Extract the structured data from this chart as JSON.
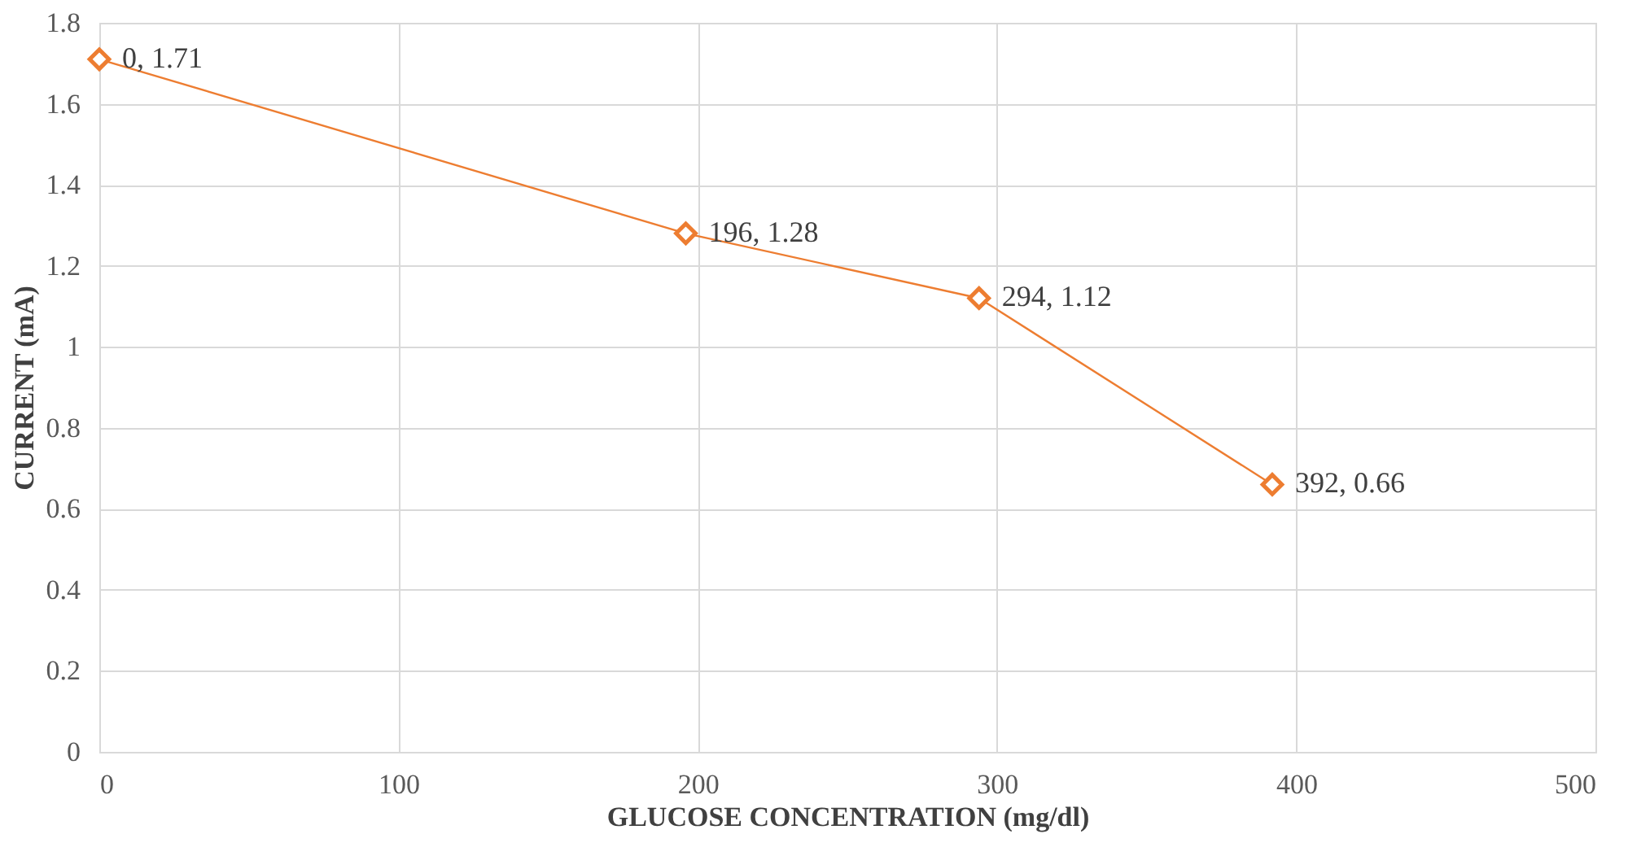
{
  "chart_data": {
    "type": "line",
    "xlabel": "GLUCOSE CONCENTRATION (mg/dl)",
    "ylabel": "CURRENT (mA)",
    "x": [
      0,
      196,
      294,
      392
    ],
    "series": [
      {
        "color": "#ed7d31",
        "values": [
          1.71,
          1.28,
          1.12,
          0.66
        ],
        "value_labels": [
          "0, 1.71",
          "196, 1.28",
          "294, 1.12",
          "392, 0.66"
        ]
      }
    ],
    "xlim": [
      0,
      500
    ],
    "xticks": [
      0,
      100,
      200,
      300,
      400,
      500
    ],
    "ylim": [
      0,
      1.8
    ],
    "yticks": [
      0,
      0.2,
      0.4,
      0.6,
      0.8,
      1,
      1.2,
      1.4,
      1.6,
      1.8
    ],
    "grid": true,
    "marker": "diamond",
    "line_style": "solid"
  }
}
